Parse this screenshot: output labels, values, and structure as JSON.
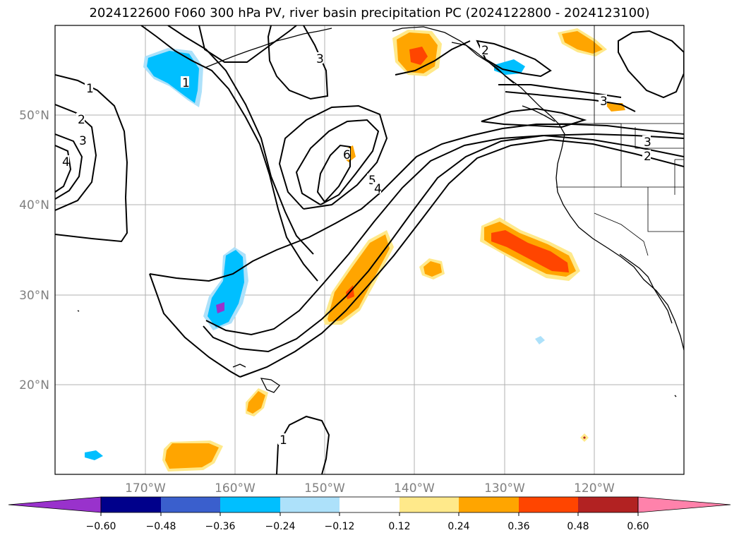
{
  "title": "2024122600 F060 300 hPa PV, river basin precipitation PC (2024122800 - 2024123100)",
  "axes": {
    "lat_ticks": [
      "20°N",
      "30°N",
      "40°N",
      "50°N"
    ],
    "lon_ticks": [
      "170°W",
      "160°W",
      "150°W",
      "140°W",
      "130°W",
      "120°W"
    ]
  },
  "pv_contour_labels": [
    "1",
    "2",
    "3",
    "4",
    "5",
    "6",
    "1",
    "2",
    "3",
    "3",
    "2",
    "1",
    "4",
    "3"
  ],
  "colorbar": {
    "tick_labels": [
      "−0.60",
      "−0.48",
      "−0.36",
      "−0.24",
      "−0.12",
      "0.12",
      "0.24",
      "0.36",
      "0.48",
      "0.60"
    ],
    "colors": [
      "#9932CC",
      "#00008B",
      "#3A5FCD",
      "#00BFFF",
      "#ADE1FA",
      "#FFFFFF",
      "#FFE98A",
      "#FFA500",
      "#FF4500",
      "#B22222",
      "#FF82AB"
    ]
  }
}
